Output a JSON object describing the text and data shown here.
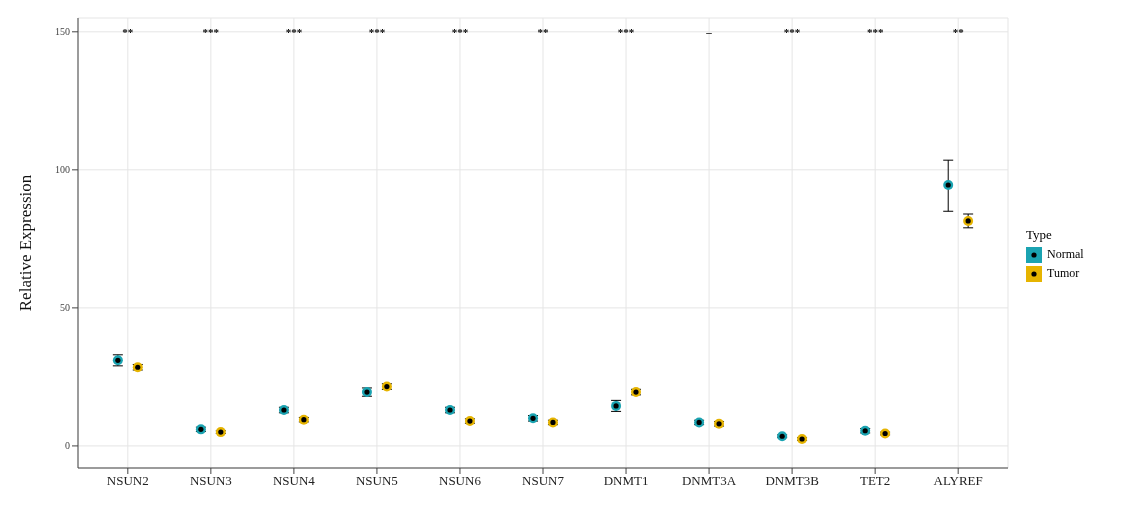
{
  "chart_data": {
    "type": "scatter",
    "ylabel": "Relative Expression",
    "legend_title": "Type",
    "legend": "right",
    "grid": true,
    "marker": "circle",
    "categories": [
      "NSUN2",
      "NSUN3",
      "NSUN4",
      "NSUN5",
      "NSUN6",
      "NSUN7",
      "DNMT1",
      "DNMT3A",
      "DNMT3B",
      "TET2",
      "ALYREF"
    ],
    "ylim": [
      -8,
      155
    ],
    "yticks": [
      0,
      50,
      100,
      150
    ],
    "series": [
      {
        "name": "Normal",
        "color": "#1aa3b1",
        "values": [
          31,
          6,
          13,
          19.5,
          13,
          10,
          14.5,
          8.5,
          3.5,
          5.5,
          94.5
        ],
        "errors": [
          2,
          0.8,
          1,
          1.5,
          1,
          1,
          2,
          0.8,
          0.5,
          0.8,
          [
            85,
            103.5
          ]
        ]
      },
      {
        "name": "Tumor",
        "color": "#e6b400",
        "values": [
          28.5,
          5,
          9.5,
          21.5,
          9,
          8.5,
          19.5,
          8,
          2.5,
          4.5,
          81.5
        ],
        "errors": [
          1,
          0.5,
          0.8,
          1,
          0.8,
          0.8,
          1,
          0.8,
          0.5,
          0.5,
          [
            79,
            84
          ]
        ]
      }
    ],
    "annotations": [
      "**",
      "***",
      "***",
      "***",
      "***",
      "**",
      "***",
      "–",
      "***",
      "***",
      "**"
    ]
  }
}
